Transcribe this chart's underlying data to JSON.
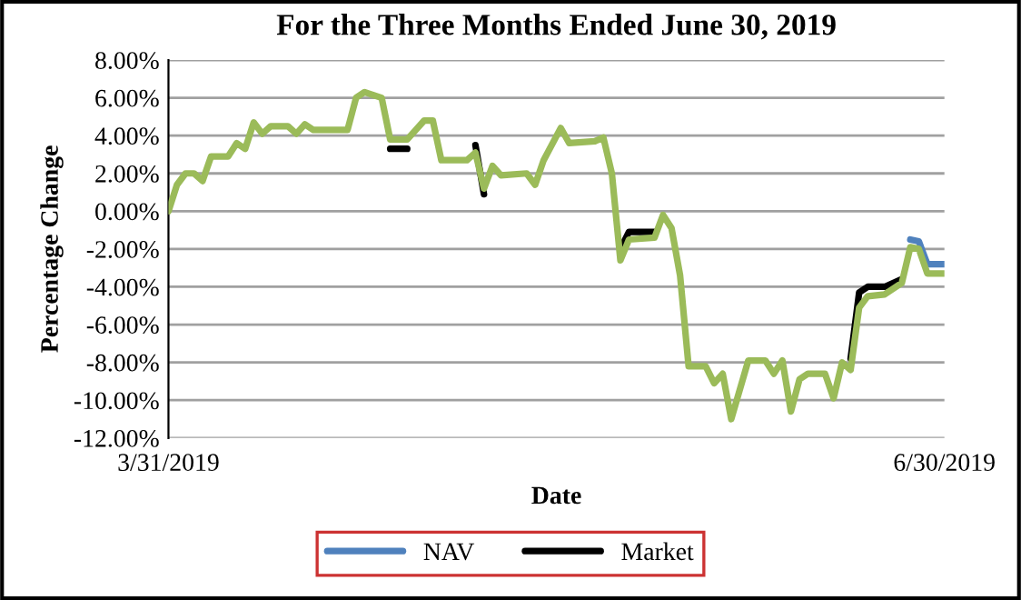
{
  "chart_data": {
    "type": "line",
    "title": "For the Three Months Ended June 30, 2019",
    "xlabel": "Date",
    "ylabel": "Percentage Change",
    "x": [
      "2019-03-31",
      "2019-04-01",
      "2019-04-02",
      "2019-04-03",
      "2019-04-04",
      "2019-04-05",
      "2019-04-07",
      "2019-04-08",
      "2019-04-09",
      "2019-04-10",
      "2019-04-11",
      "2019-04-12",
      "2019-04-14",
      "2019-04-15",
      "2019-04-16",
      "2019-04-17",
      "2019-04-21",
      "2019-04-22",
      "2019-04-23",
      "2019-04-25",
      "2019-04-26",
      "2019-04-28",
      "2019-04-30",
      "2019-05-01",
      "2019-05-02",
      "2019-05-05",
      "2019-05-06",
      "2019-05-07",
      "2019-05-08",
      "2019-05-09",
      "2019-05-12",
      "2019-05-13",
      "2019-05-14",
      "2019-05-16",
      "2019-05-17",
      "2019-05-20",
      "2019-05-21",
      "2019-05-22",
      "2019-05-23",
      "2019-05-24",
      "2019-05-27",
      "2019-05-28",
      "2019-05-29",
      "2019-05-30",
      "2019-05-31",
      "2019-06-02",
      "2019-06-03",
      "2019-06-04",
      "2019-06-05",
      "2019-06-07",
      "2019-06-09",
      "2019-06-10",
      "2019-06-11",
      "2019-06-12",
      "2019-06-13",
      "2019-06-14",
      "2019-06-16",
      "2019-06-17",
      "2019-06-18",
      "2019-06-19",
      "2019-06-20",
      "2019-06-21",
      "2019-06-23",
      "2019-06-25",
      "2019-06-26",
      "2019-06-27",
      "2019-06-28",
      "2019-06-30"
    ],
    "series": [
      {
        "name": "NAV",
        "color": "#4f81bd",
        "values": [
          null,
          null,
          null,
          null,
          null,
          null,
          null,
          null,
          null,
          null,
          null,
          null,
          null,
          null,
          null,
          null,
          null,
          null,
          null,
          null,
          null,
          null,
          null,
          null,
          null,
          null,
          null,
          null,
          null,
          null,
          null,
          null,
          null,
          null,
          null,
          null,
          null,
          null,
          null,
          null,
          null,
          null,
          null,
          null,
          null,
          null,
          null,
          null,
          null,
          null,
          null,
          null,
          null,
          null,
          null,
          null,
          null,
          null,
          null,
          null,
          null,
          null,
          null,
          null,
          -1.5,
          -1.6,
          -2.8,
          -2.8
        ]
      },
      {
        "name": "Market",
        "color": "#000000",
        "values": [
          null,
          null,
          null,
          null,
          null,
          null,
          null,
          null,
          null,
          null,
          null,
          null,
          null,
          null,
          null,
          null,
          null,
          null,
          null,
          null,
          3.3,
          3.3,
          null,
          null,
          null,
          null,
          3.5,
          0.9,
          null,
          null,
          null,
          null,
          null,
          null,
          null,
          null,
          null,
          null,
          -2.0,
          -1.1,
          -1.1,
          null,
          null,
          null,
          null,
          null,
          null,
          null,
          null,
          null,
          null,
          null,
          null,
          null,
          null,
          null,
          null,
          null,
          null,
          -7.8,
          -4.3,
          -4.0,
          -4.0,
          -3.6,
          null,
          null,
          null,
          null
        ]
      },
      {
        "color": "#9bbb59",
        "values": [
          0,
          1.4,
          2.0,
          2.0,
          1.6,
          2.9,
          2.9,
          3.6,
          3.3,
          4.7,
          4.1,
          4.5,
          4.5,
          4.1,
          4.6,
          4.3,
          4.3,
          6.0,
          6.3,
          6.0,
          3.8,
          3.8,
          4.8,
          4.8,
          2.7,
          2.7,
          3.1,
          1.2,
          2.4,
          1.9,
          2.0,
          1.4,
          2.7,
          4.4,
          3.6,
          3.7,
          3.9,
          2.0,
          -2.6,
          -1.5,
          -1.4,
          -0.2,
          -0.9,
          -3.4,
          -8.2,
          -8.2,
          -9.1,
          -8.6,
          -11.0,
          -7.9,
          -7.9,
          -8.6,
          -7.9,
          -10.6,
          -8.9,
          -8.6,
          -8.6,
          -9.9,
          -8.0,
          -8.4,
          -5.1,
          -4.5,
          -4.4,
          -3.8,
          -1.9,
          -2.0,
          -3.3,
          -3.3
        ]
      }
    ],
    "xlim": [
      "2019-03-31",
      "2019-06-30"
    ],
    "xticks": [
      {
        "value": "2019-03-31",
        "label": "3/31/2019"
      },
      {
        "value": "2019-06-30",
        "label": "6/30/2019"
      }
    ],
    "ylim": [
      -12,
      8
    ],
    "yticks": [
      {
        "value": -12,
        "label": "-12.00%"
      },
      {
        "value": -10,
        "label": "-10.00%"
      },
      {
        "value": -8,
        "label": "-8.00%"
      },
      {
        "value": -6,
        "label": "-6.00%"
      },
      {
        "value": -4,
        "label": "-4.00%"
      },
      {
        "value": -2,
        "label": "-2.00%"
      },
      {
        "value": 0,
        "label": "0.00%"
      },
      {
        "value": 2,
        "label": "2.00%"
      },
      {
        "value": 4,
        "label": "4.00%"
      },
      {
        "value": 6,
        "label": "6.00%"
      },
      {
        "value": 8,
        "label": "8.00%"
      }
    ],
    "grid": "y",
    "legend": "bottom",
    "marker": "none",
    "line_style": "solid"
  }
}
